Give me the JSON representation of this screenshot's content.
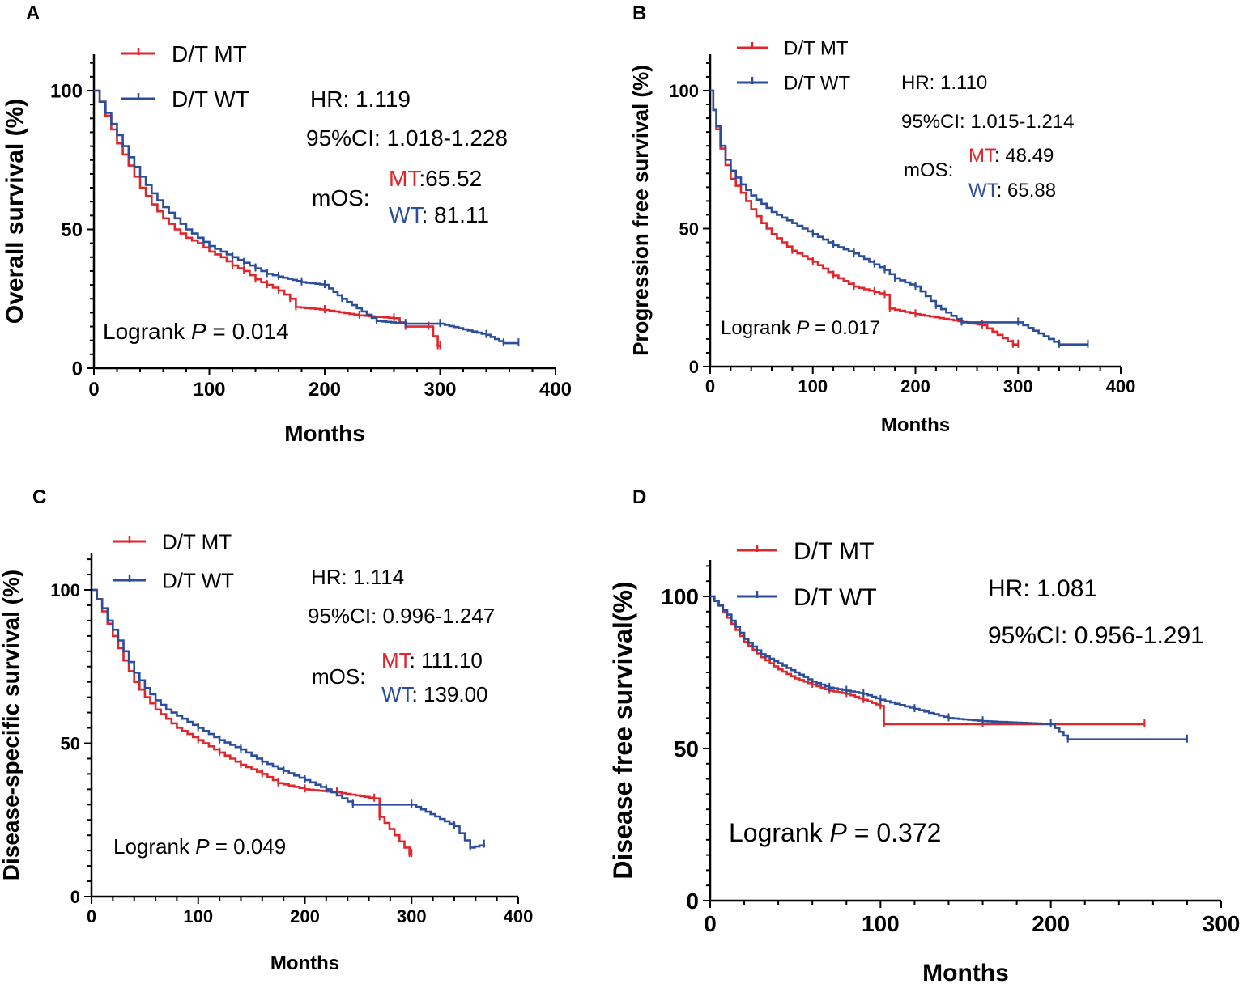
{
  "colors": {
    "mt": "#e0262b",
    "wt": "#2a4d9c",
    "axis": "#000000"
  },
  "chart_data": [
    {
      "panel": "A",
      "type": "line",
      "ylabel": "Overall survival (%)",
      "xlabel": "Months",
      "xlim": [
        0,
        400
      ],
      "ylim": [
        0,
        100
      ],
      "xticks": [
        "0",
        "100",
        "200",
        "300",
        "400"
      ],
      "yticks": [
        "0",
        "50",
        "100"
      ],
      "legend": [
        "D/T MT",
        "D/T WT"
      ],
      "stats": {
        "hr": "HR: 1.119",
        "ci": "95%CI: 1.018-1.228",
        "mos_label": "mOS:",
        "mt_label": "MT",
        "mt_value": ":65.52",
        "wt_label": "WT",
        "wt_value": ": 81.11"
      },
      "p_prefix": "Logrank ",
      "p_symbol": "P",
      "p_value": " = 0.014",
      "series": [
        {
          "name": "D/T MT",
          "x": [
            0,
            5,
            10,
            15,
            20,
            30,
            40,
            50,
            60,
            70,
            80,
            90,
            100,
            110,
            120,
            130,
            140,
            150,
            160,
            170,
            175,
            200,
            230,
            260,
            270,
            290,
            298,
            300
          ],
          "y": [
            100,
            96,
            91,
            86,
            81,
            73,
            65,
            59,
            54,
            50,
            47,
            45,
            42,
            40,
            37,
            35,
            32,
            30,
            28,
            25,
            22,
            21,
            19,
            18,
            15,
            15,
            8,
            8
          ]
        },
        {
          "name": "D/T WT",
          "x": [
            0,
            5,
            10,
            15,
            20,
            30,
            40,
            50,
            60,
            70,
            80,
            90,
            100,
            110,
            120,
            130,
            140,
            150,
            160,
            180,
            200,
            215,
            245,
            270,
            300,
            340,
            355,
            368
          ],
          "y": [
            100,
            96,
            92,
            88,
            84,
            76,
            69,
            63,
            58,
            54,
            50,
            47,
            44,
            42,
            40,
            38,
            36,
            34,
            33,
            31,
            30,
            25,
            17,
            16,
            16,
            12,
            9,
            9
          ]
        }
      ]
    },
    {
      "panel": "B",
      "type": "line",
      "ylabel": "Progression free survival (%)",
      "xlabel": "Months",
      "xlim": [
        0,
        400
      ],
      "ylim": [
        0,
        100
      ],
      "xticks": [
        "0",
        "100",
        "200",
        "300",
        "400"
      ],
      "yticks": [
        "0",
        "50",
        "100"
      ],
      "legend": [
        "D/T MT",
        "D/T WT"
      ],
      "stats": {
        "hr": "HR: 1.110",
        "ci": "95%CI: 1.015-1.214",
        "mos_label": "mOS:",
        "mt_label": "MT",
        "mt_value": ": 48.49",
        "wt_label": "WT",
        "wt_value": ": 65.88"
      },
      "p_prefix": "Logrank ",
      "p_symbol": "P",
      "p_value": " = 0.017",
      "series": [
        {
          "name": "D/T MT",
          "x": [
            0,
            3,
            6,
            10,
            15,
            20,
            30,
            40,
            50,
            60,
            70,
            80,
            100,
            120,
            140,
            160,
            170,
            175,
            200,
            265,
            295,
            300
          ],
          "y": [
            100,
            93,
            86,
            79,
            73,
            68,
            63,
            57,
            52,
            48,
            45,
            42,
            38,
            33,
            29,
            27,
            26,
            21,
            19,
            15,
            8,
            8
          ]
        },
        {
          "name": "D/T WT",
          "x": [
            0,
            3,
            6,
            10,
            15,
            20,
            30,
            40,
            50,
            60,
            80,
            100,
            120,
            140,
            160,
            170,
            180,
            200,
            220,
            245,
            300,
            340,
            368
          ],
          "y": [
            100,
            93,
            87,
            80,
            75,
            71,
            66,
            62,
            59,
            56,
            52,
            48,
            44,
            41,
            37,
            35,
            32,
            29,
            22,
            16,
            16,
            8,
            8
          ]
        }
      ]
    },
    {
      "panel": "C",
      "type": "line",
      "ylabel": "Disease-specific survival (%)",
      "xlabel": "Months",
      "xlim": [
        0,
        400
      ],
      "ylim": [
        0,
        100
      ],
      "xticks": [
        "0",
        "100",
        "200",
        "300",
        "400"
      ],
      "yticks": [
        "0",
        "50",
        "100"
      ],
      "legend": [
        "D/T MT",
        "D/T WT"
      ],
      "stats": {
        "hr": "HR: 1.114",
        "ci": "95%CI: 0.996-1.247",
        "mos_label": "mOS:",
        "mt_label": "MT",
        "mt_value": ": 111.10",
        "wt_label": "WT",
        "wt_value": ": 139.00"
      },
      "p_prefix": "Logrank ",
      "p_symbol": "P",
      "p_value": " = 0.049",
      "series": [
        {
          "name": "D/T MT",
          "x": [
            0,
            5,
            10,
            15,
            20,
            30,
            40,
            50,
            60,
            70,
            80,
            100,
            120,
            140,
            160,
            175,
            200,
            230,
            265,
            270,
            298,
            300
          ],
          "y": [
            100,
            97,
            93,
            89,
            85,
            77,
            70,
            65,
            61,
            58,
            55,
            51,
            47,
            43,
            40,
            37,
            35,
            34,
            32,
            26,
            14,
            14
          ]
        },
        {
          "name": "D/T WT",
          "x": [
            0,
            5,
            10,
            15,
            20,
            30,
            40,
            50,
            60,
            70,
            80,
            100,
            120,
            140,
            160,
            180,
            200,
            220,
            245,
            300,
            340,
            355,
            368
          ],
          "y": [
            100,
            97,
            94,
            90,
            87,
            80,
            73,
            68,
            64,
            61,
            59,
            55,
            51,
            48,
            44,
            41,
            38,
            35,
            30,
            30,
            23,
            16,
            17
          ]
        }
      ]
    },
    {
      "panel": "D",
      "type": "line",
      "ylabel": "Disease free survival(%)",
      "xlabel": "Months",
      "xlim": [
        0,
        300
      ],
      "ylim": [
        0,
        100
      ],
      "xticks": [
        "0",
        "100",
        "200",
        "300"
      ],
      "yticks": [
        "0",
        "50",
        "100"
      ],
      "legend": [
        "D/T MT",
        "D/T WT"
      ],
      "stats": {
        "hr": "HR: 1.081",
        "ci": "95%CI: 0.956-1.291"
      },
      "p_prefix": "Logrank ",
      "p_symbol": "P",
      "p_value": " = 0.372",
      "series": [
        {
          "name": "D/T MT",
          "x": [
            0,
            5,
            10,
            15,
            20,
            30,
            40,
            50,
            60,
            70,
            80,
            90,
            100,
            102,
            160,
            255
          ],
          "y": [
            100,
            97,
            93,
            89,
            85,
            80,
            76,
            73,
            71,
            69,
            68,
            66,
            64,
            58,
            58,
            58
          ]
        },
        {
          "name": "D/T WT",
          "x": [
            0,
            5,
            10,
            15,
            20,
            30,
            40,
            50,
            60,
            70,
            80,
            90,
            100,
            120,
            140,
            160,
            200,
            210,
            280
          ],
          "y": [
            100,
            97,
            94,
            90,
            86,
            81,
            78,
            75,
            72,
            70,
            69,
            68,
            66,
            63,
            60,
            59,
            58,
            53,
            53
          ]
        }
      ]
    }
  ]
}
